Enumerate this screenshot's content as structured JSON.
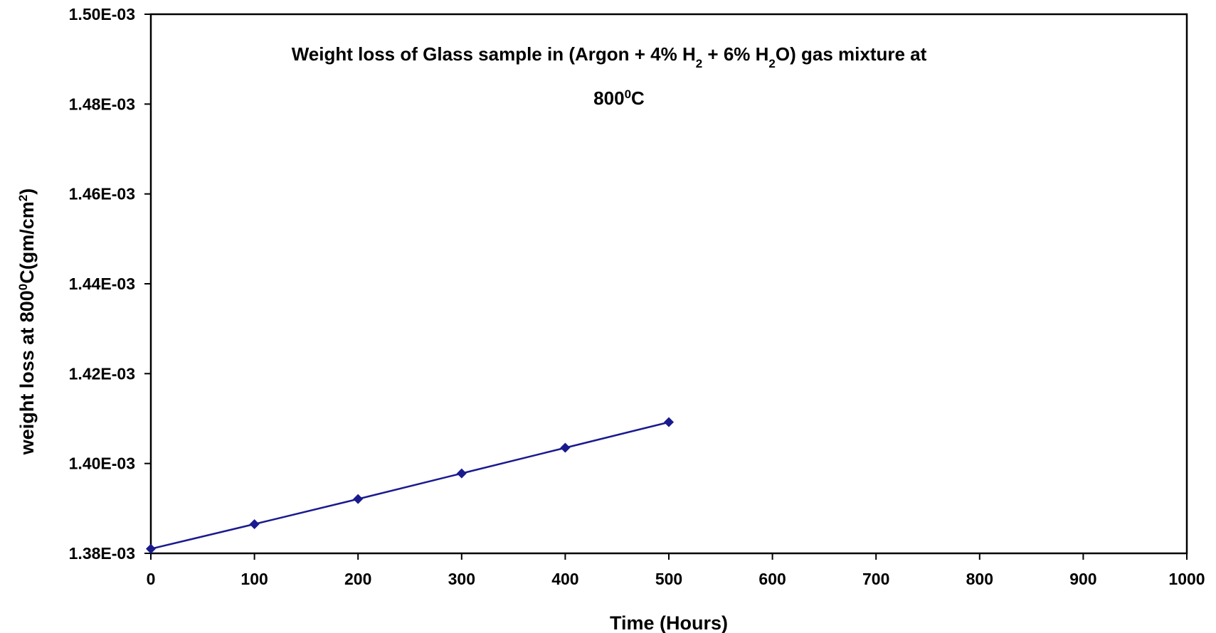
{
  "chart_data": {
    "type": "line",
    "title_parts": {
      "line1_a": "Weight loss of Glass sample in (Argon + 4% H",
      "line1_sub1": "2",
      "line1_b": " + 6% H",
      "line1_sub2": "2",
      "line1_c": "O) gas mixture at",
      "line2_a": "800",
      "line2_sup": "0",
      "line2_b": "C"
    },
    "xlabel": "Time (Hours)",
    "ylabel_parts": {
      "a": "weight loss at 800",
      "sup1": "0",
      "b": "C(gm/cm",
      "sup2": "2",
      "c": ")"
    },
    "xlim": [
      0,
      1000
    ],
    "ylim": [
      0.00138,
      0.0015
    ],
    "x_ticks": [
      0,
      100,
      200,
      300,
      400,
      500,
      600,
      700,
      800,
      900,
      1000
    ],
    "x_tick_labels": [
      "0",
      "100",
      "200",
      "300",
      "400",
      "500",
      "600",
      "700",
      "800",
      "900",
      "1000"
    ],
    "y_ticks": [
      0.00138,
      0.0014,
      0.00142,
      0.00144,
      0.00146,
      0.00148,
      0.0015
    ],
    "y_tick_labels": [
      "1.38E-03",
      "1.40E-03",
      "1.42E-03",
      "1.44E-03",
      "1.46E-03",
      "1.48E-03",
      "1.50E-03"
    ],
    "grid": false,
    "legend": "none",
    "series": [
      {
        "color": "#1a1a8f",
        "marker": "diamond",
        "x": [
          0,
          100,
          200,
          300,
          400,
          500
        ],
        "y": [
          0.001381,
          0.0013865,
          0.0013921,
          0.0013978,
          0.0014035,
          0.0014092
        ]
      }
    ]
  }
}
